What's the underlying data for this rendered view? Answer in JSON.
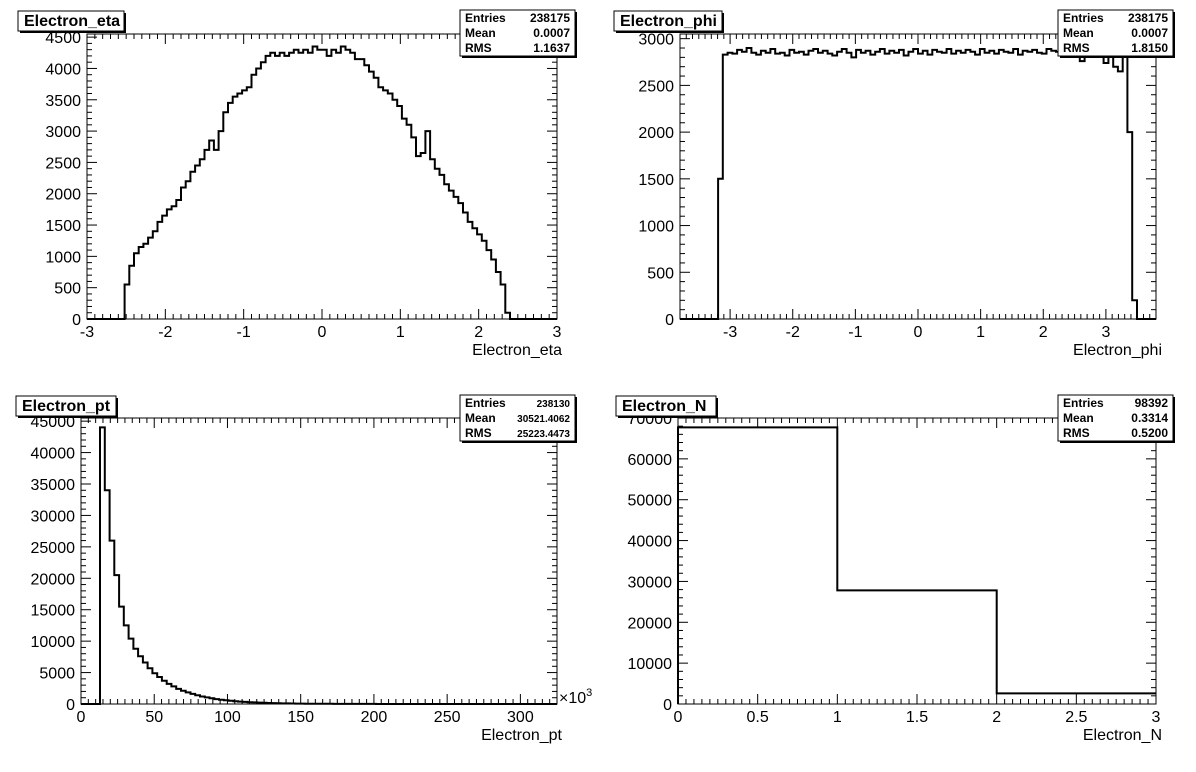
{
  "chart_data": [
    {
      "type": "histogram",
      "title": "Electron_eta",
      "xlabel": "Electron_eta",
      "ylabel": "",
      "stats": {
        "entries": "238175",
        "mean": "0.0007",
        "rms": "1.1637"
      },
      "xlim": [
        -3.0,
        3.0
      ],
      "ylim": [
        0,
        4550
      ],
      "x_ticks": [
        -3,
        -2,
        -1,
        0,
        1,
        2,
        3
      ],
      "x_tick_labels": [
        "-3",
        "-2",
        "-1",
        "0",
        "1",
        "2",
        "3"
      ],
      "y_ticks": [
        0,
        500,
        1000,
        1500,
        2000,
        2500,
        3000,
        3500,
        4000,
        4500
      ],
      "y_tick_labels": [
        "0",
        "500",
        "1000",
        "1500",
        "2000",
        "2500",
        "3000",
        "3500",
        "4000",
        "4500"
      ],
      "bin_edges_start": -3.0,
      "bin_width": 0.06,
      "values": [
        0,
        0,
        0,
        0,
        0,
        0,
        0,
        0,
        550,
        850,
        1050,
        1150,
        1200,
        1300,
        1400,
        1550,
        1650,
        1750,
        1800,
        1900,
        2100,
        2200,
        2350,
        2450,
        2550,
        2700,
        2850,
        2700,
        3000,
        3300,
        3450,
        3550,
        3600,
        3650,
        3700,
        3900,
        4000,
        4100,
        4200,
        4250,
        4200,
        4250,
        4200,
        4250,
        4300,
        4250,
        4300,
        4250,
        4350,
        4300,
        4300,
        4200,
        4300,
        4250,
        4350,
        4300,
        4250,
        4150,
        4150,
        4050,
        3950,
        3850,
        3700,
        3650,
        3600,
        3500,
        3400,
        3200,
        3100,
        2900,
        2600,
        2650,
        3000,
        2550,
        2400,
        2300,
        2150,
        2050,
        1950,
        1850,
        1700,
        1550,
        1450,
        1350,
        1250,
        1100,
        950,
        750,
        550,
        100,
        0,
        0,
        0,
        0,
        0,
        0,
        0,
        0,
        0,
        0
      ]
    },
    {
      "type": "histogram",
      "title": "Electron_phi",
      "xlabel": "Electron_phi",
      "ylabel": "",
      "stats": {
        "entries": "238175",
        "mean": "0.0007",
        "rms": "1.8150"
      },
      "xlim": [
        -3.8,
        3.8
      ],
      "ylim": [
        0,
        3050
      ],
      "x_ticks": [
        -3,
        -2,
        -1,
        0,
        1,
        2,
        3
      ],
      "x_tick_labels": [
        "-3",
        "-2",
        "-1",
        "0",
        "1",
        "2",
        "3"
      ],
      "y_ticks": [
        0,
        500,
        1000,
        1500,
        2000,
        2500,
        3000
      ],
      "y_tick_labels": [
        "0",
        "500",
        "1000",
        "1500",
        "2000",
        "2500",
        "3000"
      ],
      "bin_edges_start": -3.8,
      "bin_width": 0.076,
      "values": [
        0,
        0,
        0,
        0,
        0,
        0,
        0,
        0,
        1500,
        2830,
        2850,
        2840,
        2880,
        2860,
        2900,
        2850,
        2830,
        2870,
        2850,
        2890,
        2840,
        2850,
        2820,
        2880,
        2850,
        2860,
        2830,
        2870,
        2890,
        2850,
        2870,
        2840,
        2820,
        2860,
        2890,
        2850,
        2800,
        2880,
        2850,
        2870,
        2830,
        2860,
        2890,
        2840,
        2870,
        2850,
        2880,
        2820,
        2860,
        2890,
        2840,
        2870,
        2830,
        2880,
        2860,
        2850,
        2890,
        2840,
        2870,
        2850,
        2880,
        2860,
        2830,
        2890,
        2850,
        2870,
        2840,
        2880,
        2860,
        2850,
        2890,
        2830,
        2870,
        2860,
        2880,
        2850,
        2840,
        2890,
        2870,
        2860,
        2820,
        2870,
        2890,
        2850,
        2760,
        2880,
        2900,
        2850,
        2870,
        2740,
        2900,
        2700,
        2650,
        2900,
        2000,
        200,
        0,
        0,
        0,
        0
      ]
    },
    {
      "type": "histogram",
      "title": "Electron_pt",
      "xlabel": "Electron_pt",
      "ylabel": "",
      "axis_multiplier": "×10",
      "axis_multiplier_exp": "3",
      "stats": {
        "entries": "238130",
        "mean": "30521.4062",
        "rms": "25223.4473"
      },
      "xlim": [
        0,
        325
      ],
      "ylim": [
        0,
        45500
      ],
      "x_ticks": [
        0,
        50,
        100,
        150,
        200,
        250,
        300
      ],
      "x_tick_labels": [
        "0",
        "50",
        "100",
        "150",
        "200",
        "250",
        "300"
      ],
      "y_ticks": [
        0,
        5000,
        10000,
        15000,
        20000,
        25000,
        30000,
        35000,
        40000,
        45000
      ],
      "y_tick_labels": [
        "0",
        "5000",
        "10000",
        "15000",
        "20000",
        "25000",
        "30000",
        "35000",
        "40000",
        "45000"
      ],
      "bin_edges_start": 0,
      "bin_width": 3.25,
      "values": [
        0,
        0,
        0,
        0,
        44000,
        34000,
        26000,
        20500,
        15500,
        12500,
        10400,
        8800,
        7600,
        6600,
        5700,
        4900,
        4300,
        3700,
        3200,
        2800,
        2400,
        2100,
        1850,
        1600,
        1400,
        1200,
        1050,
        900,
        780,
        680,
        590,
        510,
        440,
        380,
        330,
        290,
        250,
        220,
        190,
        160,
        140,
        120,
        100,
        90,
        80,
        70,
        60,
        50,
        45,
        40,
        35,
        30,
        25,
        22,
        20,
        18,
        16,
        14,
        12,
        10,
        9,
        8,
        7,
        6,
        5,
        5,
        4,
        4,
        3,
        3,
        2,
        2,
        2,
        2,
        1,
        1,
        1,
        1,
        1,
        1,
        1,
        1,
        1,
        1,
        1,
        1,
        1,
        1,
        1,
        1,
        1,
        1,
        1,
        1,
        1,
        1,
        1,
        1,
        1,
        1
      ]
    },
    {
      "type": "histogram",
      "title": "Electron_N",
      "xlabel": "Electron_N",
      "ylabel": "",
      "stats": {
        "entries": "98392",
        "mean": "0.3314",
        "rms": "0.5200"
      },
      "xlim": [
        0,
        3
      ],
      "ylim": [
        0,
        70000
      ],
      "x_ticks": [
        0,
        0.5,
        1,
        1.5,
        2,
        2.5,
        3
      ],
      "x_tick_labels": [
        "0",
        "0.5",
        "1",
        "1.5",
        "2",
        "2.5",
        "3"
      ],
      "y_ticks": [
        0,
        10000,
        20000,
        30000,
        40000,
        50000,
        60000,
        70000
      ],
      "y_tick_labels": [
        "0",
        "10000",
        "20000",
        "30000",
        "40000",
        "50000",
        "60000",
        "70000"
      ],
      "bin_edges_start": 0,
      "bin_width": 1,
      "values": [
        67700,
        27800,
        2600
      ]
    }
  ],
  "stats_labels": {
    "entries": "Entries",
    "mean": "Mean",
    "rms": "RMS"
  },
  "colors": {
    "line": "#000000",
    "background": "#ffffff",
    "title_box": "#ffffff"
  }
}
